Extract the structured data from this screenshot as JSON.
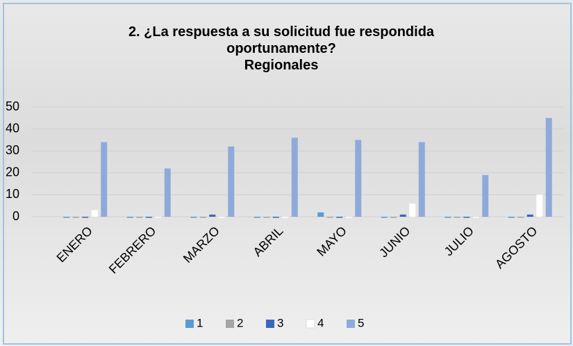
{
  "chart_data": {
    "type": "bar",
    "title": "2. ¿La respuesta a su solicitud fue respondida oportunamente?",
    "subtitle": "Regionales",
    "categories": [
      "ENERO",
      "FEBRERO",
      "MARZO",
      "ABRIL",
      "MAYO",
      "JUNIO",
      "JULIO",
      "AGOSTO"
    ],
    "series": [
      {
        "name": "1",
        "color": "#5b9bd5",
        "values": [
          0,
          0,
          0,
          0,
          2,
          0,
          0,
          0
        ]
      },
      {
        "name": "2",
        "color": "#a5a5a5",
        "values": [
          0,
          0,
          0,
          0,
          0,
          0,
          0,
          0
        ]
      },
      {
        "name": "3",
        "color": "#3a66c0",
        "values": [
          0,
          0,
          1,
          0,
          0,
          1,
          0,
          1
        ]
      },
      {
        "name": "4",
        "color": "#ffffff",
        "values": [
          3,
          0,
          0,
          0,
          0,
          6,
          0,
          10
        ]
      },
      {
        "name": "5",
        "color": "#8eaadb",
        "values": [
          34,
          22,
          32,
          36,
          35,
          34,
          19,
          45
        ]
      }
    ],
    "ylim": [
      0,
      50
    ],
    "yticks": [
      0,
      10,
      20,
      30,
      40,
      50
    ],
    "grid": true,
    "legend": "bottom"
  }
}
